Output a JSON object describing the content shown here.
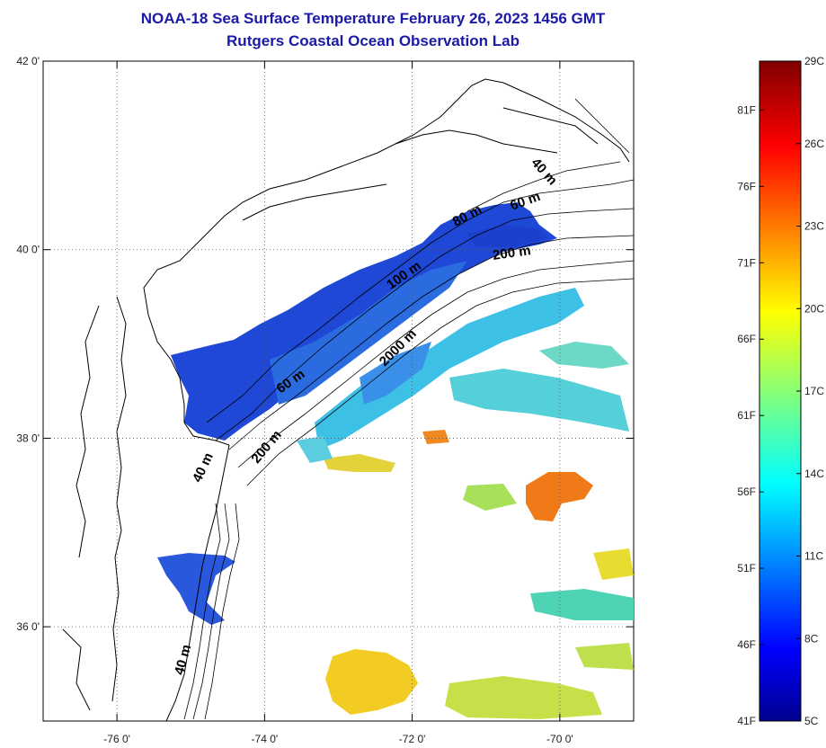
{
  "header": {
    "title_line1": "NOAA-18 Sea Surface Temperature February 26, 2023 1456 GMT",
    "title_line2": "Rutgers Coastal Ocean Observation Lab"
  },
  "map": {
    "lon_range": [
      -77,
      -69
    ],
    "lat_range": [
      35,
      42
    ],
    "lat_ticks": [
      {
        "value": 42,
        "label": "42 0'"
      },
      {
        "value": 40,
        "label": "40 0'"
      },
      {
        "value": 38,
        "label": "38 0'"
      },
      {
        "value": 36,
        "label": "36 0'"
      }
    ],
    "lon_ticks": [
      {
        "value": -76,
        "label": "-76 0'"
      },
      {
        "value": -74,
        "label": "-74 0'"
      },
      {
        "value": -72,
        "label": "-72 0'"
      },
      {
        "value": -70,
        "label": "-70 0'"
      }
    ],
    "grid": "dotted",
    "contour_labels": [
      {
        "text": "40 m"
      },
      {
        "text": "60 m"
      },
      {
        "text": "80 m"
      },
      {
        "text": "200 m"
      },
      {
        "text": "100 m"
      },
      {
        "text": "2000 m"
      },
      {
        "text": "60 m"
      },
      {
        "text": "200 m"
      },
      {
        "text": "40 m"
      },
      {
        "text": "40 m"
      }
    ],
    "colors": {
      "cold": "#1a3ccc",
      "land_line": "#000000"
    }
  },
  "colorbar": {
    "celsius_ticks": [
      {
        "value": 29,
        "label": "29C"
      },
      {
        "value": 26,
        "label": "26C"
      },
      {
        "value": 23,
        "label": "23C"
      },
      {
        "value": 20,
        "label": "20C"
      },
      {
        "value": 17,
        "label": "17C"
      },
      {
        "value": 14,
        "label": "14C"
      },
      {
        "value": 11,
        "label": "11C"
      },
      {
        "value": 8,
        "label": "8C"
      },
      {
        "value": 5,
        "label": "5C"
      }
    ],
    "fahrenheit_ticks": [
      {
        "value": 81,
        "label": "81F"
      },
      {
        "value": 76,
        "label": "76F"
      },
      {
        "value": 71,
        "label": "71F"
      },
      {
        "value": 66,
        "label": "66F"
      },
      {
        "value": 61,
        "label": "61F"
      },
      {
        "value": 56,
        "label": "56F"
      },
      {
        "value": 51,
        "label": "51F"
      },
      {
        "value": 46,
        "label": "46F"
      },
      {
        "value": 41,
        "label": "41F"
      }
    ],
    "range_c": [
      5,
      29
    ]
  }
}
